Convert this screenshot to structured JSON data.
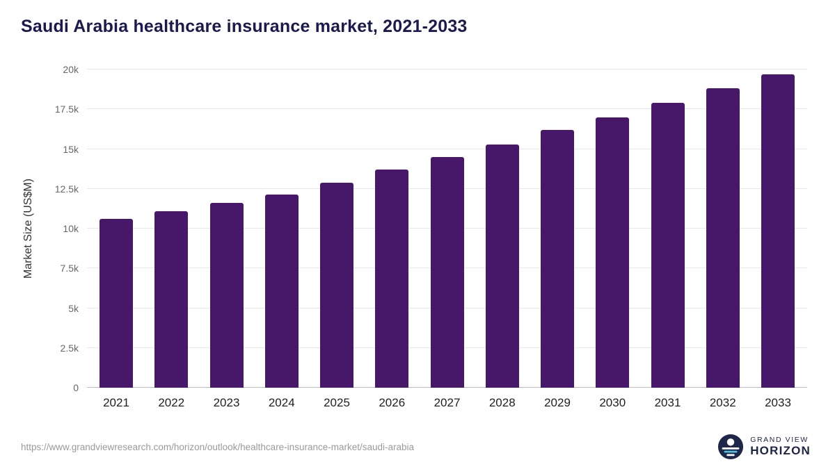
{
  "title": "Saudi Arabia healthcare insurance market, 2021-2033",
  "chart_data": {
    "type": "bar",
    "title": "Saudi Arabia healthcare insurance market, 2021-2033",
    "categories": [
      "2021",
      "2022",
      "2023",
      "2024",
      "2025",
      "2026",
      "2027",
      "2028",
      "2029",
      "2030",
      "2031",
      "2032",
      "2033"
    ],
    "values": [
      10600,
      11100,
      11600,
      12150,
      12900,
      13700,
      14500,
      15300,
      16200,
      17000,
      17900,
      18800,
      19700
    ],
    "xlabel": "",
    "ylabel": "Market Size (US$M)",
    "ylim": [
      0,
      20000
    ],
    "yticks": [
      0,
      2500,
      5000,
      7500,
      10000,
      12500,
      15000,
      17500,
      20000
    ],
    "ytick_labels": [
      "0",
      "2.5k",
      "5k",
      "7.5k",
      "10k",
      "12.5k",
      "15k",
      "17.5k",
      "20k"
    ],
    "grid": true,
    "legend": false,
    "bar_color": "#471769"
  },
  "colors": {
    "title_text": "#1a1a4e",
    "bar_fill": "#471769",
    "gridline": "#e8e8e8",
    "axis_baseline": "#bdbdbd",
    "logo_navy": "#1e2749",
    "logo_teal": "#4cc3e0"
  },
  "footer": {
    "source_url": "https://www.grandviewresearch.com/horizon/outlook/healthcare-insurance-market/saudi-arabia",
    "logo_line1": "GRAND VIEW",
    "logo_line2": "HORIZON"
  }
}
